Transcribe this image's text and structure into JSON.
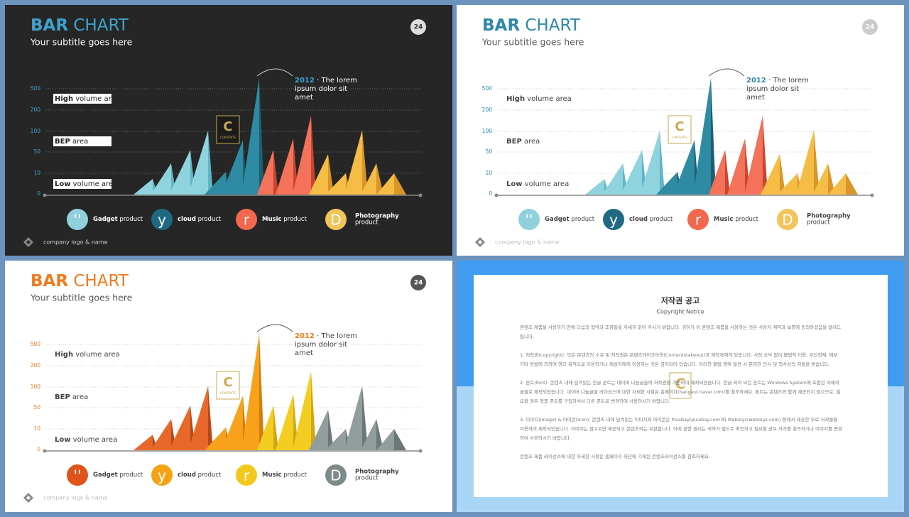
{
  "slides": [
    {
      "title_bold": "BAR",
      "title_rest": "CHART",
      "subtitle": "Your subtitle goes here",
      "page_number": "24",
      "yticks": [
        "500",
        "200",
        "100",
        "50",
        "10",
        "0"
      ],
      "areas": [
        {
          "bold": "High",
          "rest": "volume area"
        },
        {
          "bold": "BEP",
          "rest": "area"
        },
        {
          "bold": "Low",
          "rest": "volume area"
        }
      ],
      "callout": {
        "year": "2012",
        "line1": "· The lorem",
        "lines": [
          "ipsum dolor sit",
          "amet"
        ]
      },
      "logo": "C",
      "logo_sub": "CONTENTS",
      "legend": [
        {
          "icon": "''",
          "bold": "Gadget",
          "rest": "product"
        },
        {
          "icon": "y",
          "bold": "cloud",
          "rest": "product"
        },
        {
          "icon": "r",
          "bold": "Music",
          "rest": "product"
        },
        {
          "icon": "D",
          "bold": "Photography",
          "rest": "product"
        }
      ],
      "footer": "company logo & name"
    },
    {
      "title_bold": "BAR",
      "title_rest": "CHART",
      "subtitle": "Your subtitle goes here",
      "page_number": "24",
      "yticks": [
        "500",
        "200",
        "100",
        "50",
        "10",
        "0"
      ],
      "areas": [
        {
          "bold": "High",
          "rest": "volume area"
        },
        {
          "bold": "BEP",
          "rest": "area"
        },
        {
          "bold": "Low",
          "rest": "volume area"
        }
      ],
      "callout": {
        "year": "2012",
        "line1": "· The lorem",
        "lines": [
          "ipsum dolor sit",
          "amet"
        ]
      },
      "logo": "C",
      "logo_sub": "CONTENTS",
      "legend": [
        {
          "icon": "''",
          "bold": "Gadget",
          "rest": "product"
        },
        {
          "icon": "y",
          "bold": "cloud",
          "rest": "product"
        },
        {
          "icon": "r",
          "bold": "Music",
          "rest": "product"
        },
        {
          "icon": "D",
          "bold": "Photography",
          "rest": "product"
        }
      ],
      "footer": "company logo & name"
    },
    {
      "title_bold": "BAR",
      "title_rest": "CHART",
      "subtitle": "Your subtitle goes here",
      "page_number": "24",
      "yticks": [
        "500",
        "200",
        "100",
        "50",
        "10",
        "0"
      ],
      "areas": [
        {
          "bold": "High",
          "rest": "volume area"
        },
        {
          "bold": "BEP",
          "rest": "area"
        },
        {
          "bold": "Low",
          "rest": "volume area"
        }
      ],
      "callout": {
        "year": "2012",
        "line1": "· The lorem",
        "lines": [
          "ipsum dolor sit",
          "amet"
        ]
      },
      "logo": "C",
      "logo_sub": "CONTENTS",
      "legend": [
        {
          "icon": "''",
          "bold": "Gadget",
          "rest": "product"
        },
        {
          "icon": "y",
          "bold": "cloud",
          "rest": "product"
        },
        {
          "icon": "r",
          "bold": "Music",
          "rest": "product"
        },
        {
          "icon": "D",
          "bold": "Photography",
          "rest": "product"
        }
      ],
      "footer": "company logo & name"
    }
  ],
  "notice": {
    "title": "저작권 공고",
    "subtitle": "Copyright Notice",
    "logo": "C",
    "paragraphs": [
      "콘텐츠 제품을 사용하기 전에 다음의 협약과 조항들을 자세히 읽어 주시기 바랍니다. 귀하가 이 콘텐츠 제품을 사용하는 것은 사용자 계약과 보증에 동의하셨음을 알려드립니다.",
      "1. 저작권(copyright): 모든 콘텐츠의 소유 및 저작권은 콘텐츠테이크아웃(Contentstakeout)과 제작자에게 있습니다. 사전 승낙 없이 불법적 이용, 무단전재, 배포 기타 방법에 의하여 영리 목적으로 이용하거나 제삼자에게 이용하는 것은 금지되어 있습니다. 이러한 불법 행위 발견 시 준엄한 민사 및 형사상의 처벌을 받습니다.",
      "2. 폰트(font): 콘텐츠 내에 담겨있는 한글 폰트는 네이버 나눔글꼴의 저작권을 기반하여 제작되었습니다. 한글 외의 모든 폰트는 Windows System에 포함된 자체의 글꼴로 제작되었습니다. 네이버 나눔글꼴 라이선스에 대한 자세한 사항은 홈페이지(hangeul.naver.com)를 참조하세요. 폰트는 콘텐츠와 함께 제공되지 않으므로, 필요할 경우 정품 폰트를 구입하셔서 다른 폰트로 변경하여 사용하시기 바랍니다.",
      "3. 이미지(image) & 아이콘(icon): 콘텐츠 내에 담겨있는 이미지와 아이콘은 Pixabay(pixabay.com)와 Webalys(webalys.com) 등에서 제공한 무료 저작물을 이용하여 제작되었습니다. 이미지는 참고로만 제공되고 콘텐츠와는 무관합니다. 이에 관한 권리는 귀하가 별도로 확인하고 필요할 경우 허가를 취득하거나 이미지를 변경하여 사용하시기 바랍니다.",
      "콘텐츠 제품 라이선스에 대한 자세한 사항은 홈페이지 하단에 기재된 콘텐츠라이선스를 참조하세요."
    ]
  }
}
